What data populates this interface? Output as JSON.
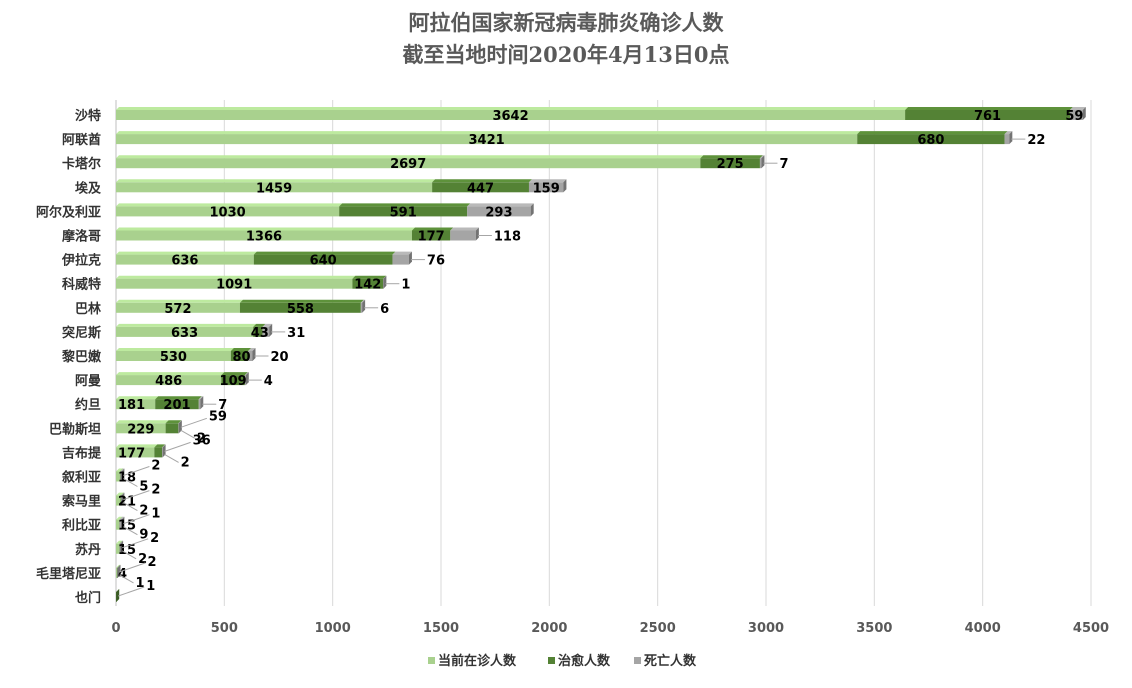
{
  "chart_data": {
    "type": "bar",
    "orientation": "horizontal",
    "stacked": true,
    "title": "阿拉伯国家新冠病毒肺炎确诊人数",
    "subtitle": "截至当地时间2020年4月13日0点",
    "xlim": [
      0,
      4500
    ],
    "xticks": [
      0,
      500,
      1000,
      1500,
      2000,
      2500,
      3000,
      3500,
      4000,
      4500
    ],
    "grid": true,
    "legend_position": "bottom",
    "categories": [
      "沙特",
      "阿联酋",
      "卡塔尔",
      "埃及",
      "阿尔及利亚",
      "摩洛哥",
      "伊拉克",
      "科威特",
      "巴林",
      "突尼斯",
      "黎巴嫩",
      "阿曼",
      "约旦",
      "巴勒斯坦",
      "吉布提",
      "叙利亚",
      "索马里",
      "利比亚",
      "苏丹",
      "毛里塔尼亚",
      "也门"
    ],
    "series": [
      {
        "name": "当前在诊人数",
        "color": "#a9d18e",
        "values": [
          3642,
          3421,
          2697,
          1459,
          1030,
          1366,
          636,
          1091,
          572,
          633,
          530,
          486,
          181,
          229,
          177,
          18,
          21,
          15,
          15,
          4,
          0
        ]
      },
      {
        "name": "治愈人数",
        "color": "#548235",
        "values": [
          761,
          680,
          275,
          447,
          591,
          177,
          640,
          142,
          558,
          43,
          80,
          109,
          201,
          59,
          36,
          2,
          2,
          1,
          2,
          2,
          1
        ]
      },
      {
        "name": "死亡人数",
        "color": "#a5a5a5",
        "values": [
          59,
          22,
          7,
          159,
          293,
          118,
          76,
          1,
          6,
          31,
          20,
          4,
          7,
          2,
          2,
          5,
          2,
          9,
          2,
          1,
          0
        ]
      }
    ],
    "labels": [
      [
        "3642",
        "761",
        "59"
      ],
      [
        "3421",
        "680",
        "22"
      ],
      [
        "2697",
        "275",
        "7"
      ],
      [
        "1459",
        "447",
        "159"
      ],
      [
        "1030",
        "591",
        "293"
      ],
      [
        "1366",
        "177",
        "118"
      ],
      [
        "636",
        "640",
        "76"
      ],
      [
        "1091",
        "142",
        "1"
      ],
      [
        "572",
        "558",
        "6"
      ],
      [
        "633",
        "43",
        "31"
      ],
      [
        "530",
        "80",
        "20"
      ],
      [
        "486",
        "109",
        "4"
      ],
      [
        "181",
        "201",
        "7"
      ],
      [
        "229",
        "59",
        "2"
      ],
      [
        "177",
        "36",
        "2"
      ],
      [
        "18",
        "2",
        "5"
      ],
      [
        "21",
        "2",
        "2"
      ],
      [
        "15",
        "1",
        "9"
      ],
      [
        "15",
        "2",
        "2"
      ],
      [
        "4",
        "2",
        "1"
      ],
      [
        "",
        "1",
        ""
      ]
    ]
  }
}
